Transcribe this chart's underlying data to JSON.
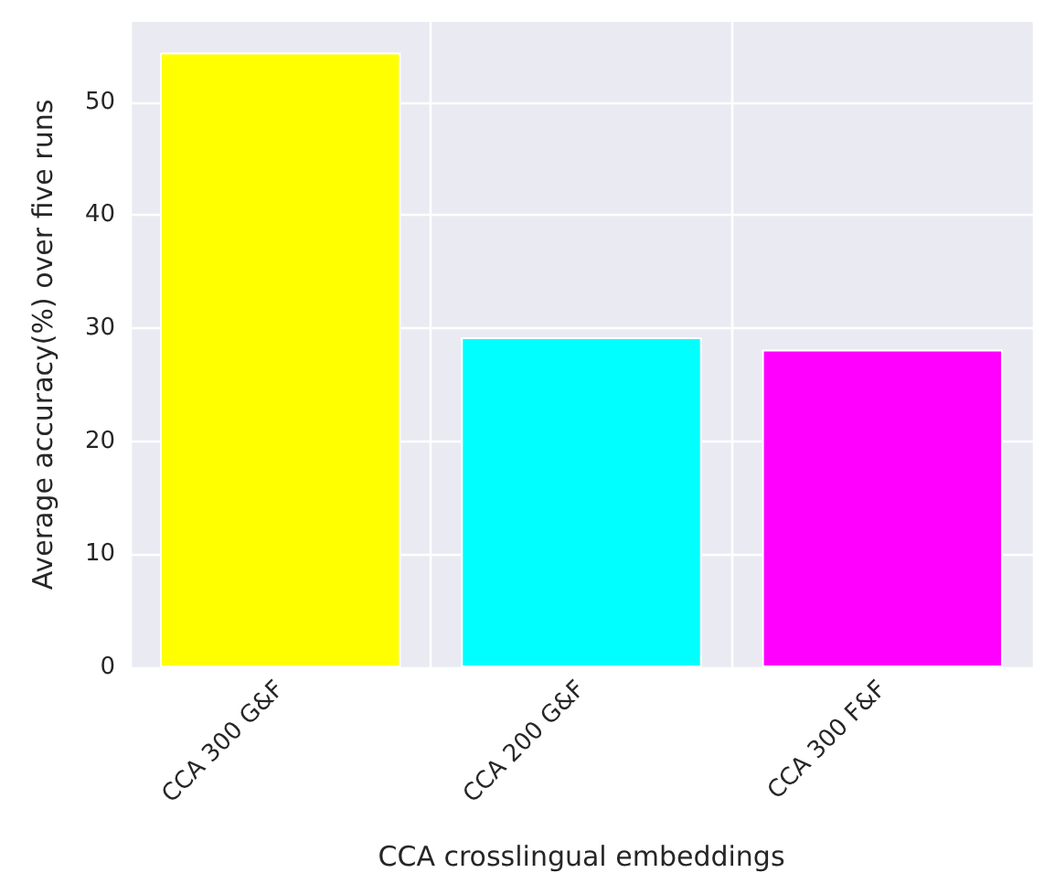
{
  "chart_data": {
    "type": "bar",
    "xlabel": "CCA crosslingual embeddings",
    "ylabel": "Average accuracy(%) over five runs",
    "categories": [
      "CCA 300 G&F",
      "CCA 200 G&F",
      "CCA 300 F&F"
    ],
    "values": [
      54.4,
      29.2,
      28.1
    ],
    "colors": [
      "#ffff00",
      "#00ffff",
      "#ff00ff"
    ],
    "ylim": [
      0,
      57.1
    ],
    "yticks": [
      0,
      10,
      20,
      30,
      40,
      50
    ],
    "grid": true
  }
}
